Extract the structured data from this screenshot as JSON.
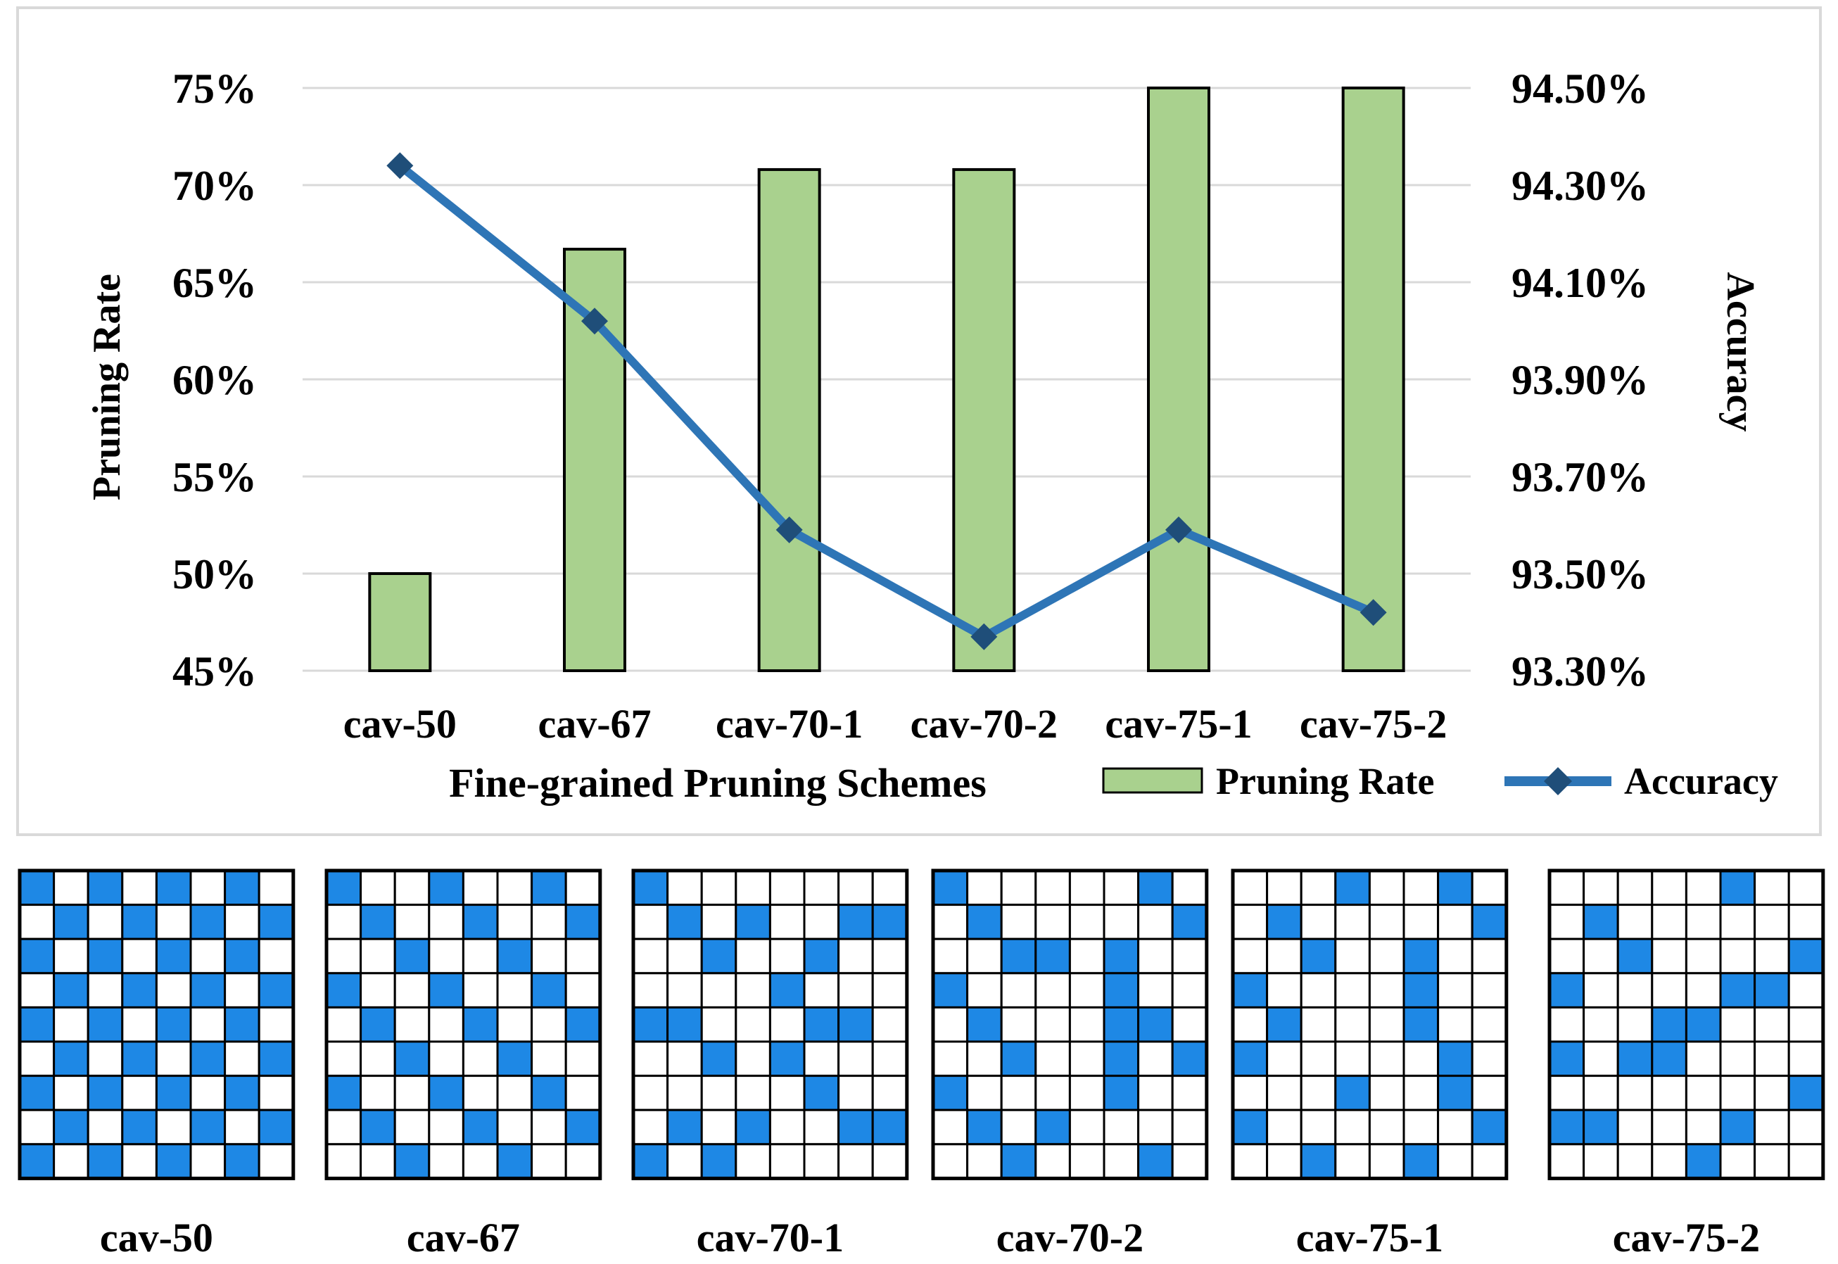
{
  "chart_data": {
    "type": "bar+line",
    "categories": [
      "cav-50",
      "cav-67",
      "cav-70-1",
      "cav-70-2",
      "cav-75-1",
      "cav-75-2"
    ],
    "xlabel": "Fine-grained Pruning Schemes",
    "ylabel_left": "Pruning Rate",
    "ylabel_right": "Accuracy",
    "ylim_left": [
      0.45,
      0.75
    ],
    "yticks_left": [
      "45%",
      "50%",
      "55%",
      "60%",
      "65%",
      "70%",
      "75%"
    ],
    "ylim_right": [
      0.933,
      0.945
    ],
    "yticks_right": [
      "93.30%",
      "93.50%",
      "93.70%",
      "93.90%",
      "94.10%",
      "94.30%",
      "94.50%"
    ],
    "grid": true,
    "legend_position": "bottom-right",
    "series": [
      {
        "name": "Pruning Rate",
        "type": "bar",
        "color": "#a9d18e",
        "values": [
          0.5,
          0.667,
          0.708,
          0.708,
          0.75,
          0.75
        ]
      },
      {
        "name": "Accuracy",
        "type": "line",
        "color": "#2e75b6",
        "values": [
          0.9434,
          0.9402,
          0.9359,
          0.9337,
          0.9359,
          0.9342
        ]
      }
    ]
  },
  "masks": {
    "fill_color": "#1e88e5",
    "items": [
      {
        "label": "cav-50",
        "rows": [
          "10101010",
          "01010101",
          "10101010",
          "01010101",
          "10101010",
          "01010101",
          "10101010",
          "01010101",
          "10101010"
        ]
      },
      {
        "label": "cav-67",
        "rows": [
          "10010010",
          "01001001",
          "00100100",
          "10010010",
          "01001001",
          "00100100",
          "10010010",
          "01001001",
          "00100100"
        ]
      },
      {
        "label": "cav-70-1",
        "rows": [
          "10000000",
          "01010011",
          "00100100",
          "00001000",
          "11000110",
          "00101000",
          "00000100",
          "01010011",
          "10100000"
        ]
      },
      {
        "label": "cav-70-2",
        "rows": [
          "10000010",
          "01000001",
          "00110100",
          "10000100",
          "01000110",
          "00100101",
          "10000100",
          "01010000",
          "00100010"
        ]
      },
      {
        "label": "cav-75-1",
        "rows": [
          "00010010",
          "01000001",
          "00100100",
          "10000100",
          "01000100",
          "10000010",
          "00010010",
          "10000001",
          "00100100"
        ]
      },
      {
        "label": "cav-75-2",
        "rows": [
          "00000100",
          "01000000",
          "00100001",
          "10000110",
          "00011000",
          "10110000",
          "00000001",
          "11000100",
          "00001000"
        ]
      }
    ]
  }
}
